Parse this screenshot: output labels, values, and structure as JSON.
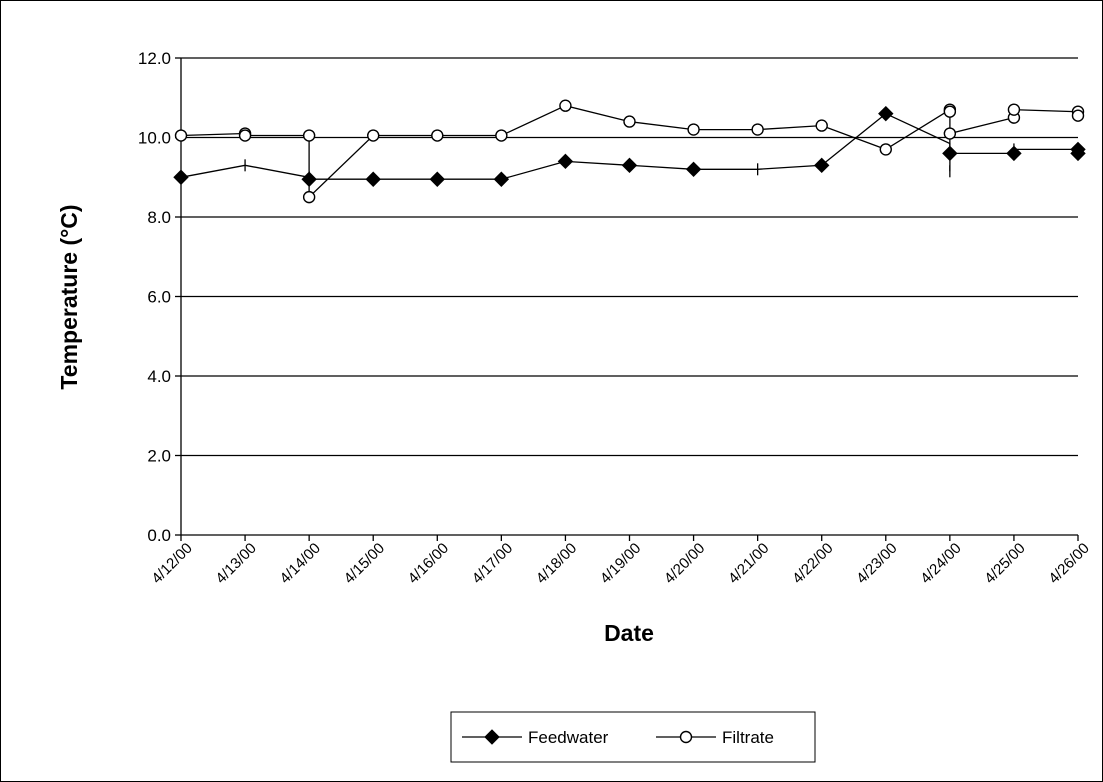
{
  "chart_data": {
    "type": "line",
    "xlabel": "Date",
    "ylabel": "Temperature (°C)",
    "ylim": [
      0,
      12
    ],
    "yticks": [
      "0.0",
      "2.0",
      "4.0",
      "6.0",
      "8.0",
      "10.0",
      "12.0"
    ],
    "categories": [
      "4/12/00",
      "4/13/00",
      "4/14/00",
      "4/15/00",
      "4/16/00",
      "4/17/00",
      "4/18/00",
      "4/19/00",
      "4/20/00",
      "4/21/00",
      "4/22/00",
      "4/23/00",
      "4/24/00",
      "4/25/00",
      "4/26/00"
    ],
    "grid": "horizontal",
    "legend_position": "bottom-center",
    "series": [
      {
        "name": "Feedwater",
        "marker": "diamond",
        "color": "#000000",
        "points": [
          {
            "x": 0.0,
            "y": 9.0,
            "marker": true
          },
          {
            "x": 1.0,
            "y": 9.3,
            "marker": false
          },
          {
            "x": 2.0,
            "y": 9.0,
            "marker": false
          },
          {
            "x": 2.0,
            "y": 8.95,
            "marker": true
          },
          {
            "x": 3.0,
            "y": 8.95,
            "marker": true
          },
          {
            "x": 4.0,
            "y": 8.95,
            "marker": true
          },
          {
            "x": 5.0,
            "y": 8.95,
            "marker": true
          },
          {
            "x": 6.0,
            "y": 9.4,
            "marker": true
          },
          {
            "x": 7.0,
            "y": 9.3,
            "marker": true
          },
          {
            "x": 8.0,
            "y": 9.2,
            "marker": true
          },
          {
            "x": 9.0,
            "y": 9.2,
            "marker": false
          },
          {
            "x": 10.0,
            "y": 9.3,
            "marker": true
          },
          {
            "x": 11.0,
            "y": 10.6,
            "marker": true
          },
          {
            "x": 12.0,
            "y": 9.85,
            "marker": false
          },
          {
            "x": 12.0,
            "y": 9.15,
            "marker": false
          },
          {
            "x": 12.0,
            "y": 9.6,
            "marker": true
          },
          {
            "x": 13.0,
            "y": 9.6,
            "marker": true
          },
          {
            "x": 13.0,
            "y": 9.7,
            "marker": false
          },
          {
            "x": 14.0,
            "y": 9.7,
            "marker": true
          },
          {
            "x": 14.0,
            "y": 9.6,
            "marker": true
          }
        ]
      },
      {
        "name": "Filtrate",
        "marker": "circle",
        "color": "#000000",
        "points": [
          {
            "x": 0.0,
            "y": 10.05,
            "marker": true
          },
          {
            "x": 1.0,
            "y": 10.1,
            "marker": true
          },
          {
            "x": 1.0,
            "y": 10.05,
            "marker": true
          },
          {
            "x": 2.0,
            "y": 10.05,
            "marker": true
          },
          {
            "x": 2.0,
            "y": 8.5,
            "marker": true
          },
          {
            "x": 3.0,
            "y": 10.05,
            "marker": true
          },
          {
            "x": 4.0,
            "y": 10.05,
            "marker": true
          },
          {
            "x": 5.0,
            "y": 10.05,
            "marker": true
          },
          {
            "x": 6.0,
            "y": 10.8,
            "marker": true
          },
          {
            "x": 7.0,
            "y": 10.4,
            "marker": true
          },
          {
            "x": 8.0,
            "y": 10.2,
            "marker": true
          },
          {
            "x": 9.0,
            "y": 10.2,
            "marker": true
          },
          {
            "x": 10.0,
            "y": 10.3,
            "marker": true
          },
          {
            "x": 11.0,
            "y": 9.7,
            "marker": true
          },
          {
            "x": 12.0,
            "y": 10.7,
            "marker": true
          },
          {
            "x": 12.0,
            "y": 10.65,
            "marker": true
          },
          {
            "x": 12.0,
            "y": 10.1,
            "marker": true
          },
          {
            "x": 13.0,
            "y": 10.5,
            "marker": true
          },
          {
            "x": 13.0,
            "y": 10.7,
            "marker": true
          },
          {
            "x": 14.0,
            "y": 10.65,
            "marker": true
          },
          {
            "x": 14.0,
            "y": 10.55,
            "marker": true
          }
        ]
      }
    ]
  }
}
